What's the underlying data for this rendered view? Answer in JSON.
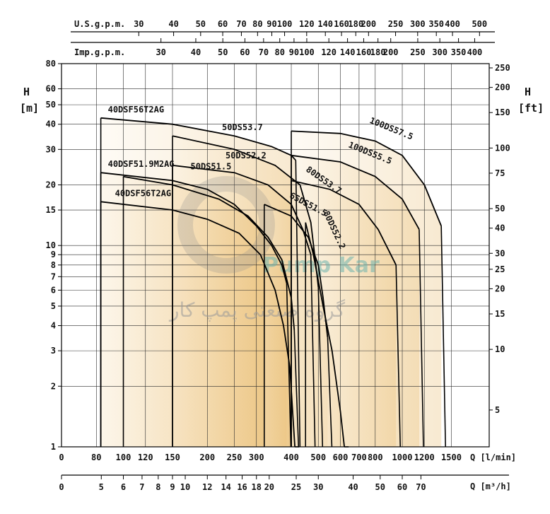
{
  "chart_data": {
    "type": "line",
    "axes": {
      "x_primary": {
        "label": "Q",
        "unit": "[l/min]",
        "scale": "log",
        "ticks": [
          0,
          80,
          100,
          120,
          150,
          200,
          250,
          300,
          400,
          500,
          600,
          700,
          800,
          1000,
          1200,
          1500
        ]
      },
      "x_m3h": {
        "label": "Q",
        "unit": "[m³/h]",
        "scale": "log",
        "ticks": [
          0,
          5,
          6,
          7,
          8,
          9,
          10,
          12,
          14,
          16,
          18,
          20,
          25,
          30,
          40,
          50,
          60,
          70
        ]
      },
      "x_usgpm": {
        "label": "U.S.g.p.m.",
        "scale": "log",
        "ticks": [
          30,
          40,
          50,
          60,
          70,
          80,
          90,
          100,
          120,
          140,
          160,
          180,
          200,
          250,
          300,
          350,
          400,
          500
        ]
      },
      "x_impgpm": {
        "label": "Imp.g.p.m.",
        "scale": "log",
        "ticks": [
          30,
          40,
          50,
          60,
          70,
          80,
          90,
          100,
          120,
          140,
          160,
          180,
          200,
          250,
          300,
          350,
          400
        ]
      },
      "y_left": {
        "label": "H",
        "unit": "[m]",
        "scale": "log",
        "range": [
          1,
          80
        ],
        "ticks": [
          1,
          2,
          3,
          4,
          5,
          6,
          7,
          8,
          9,
          10,
          15,
          20,
          30,
          40,
          50,
          60,
          80
        ]
      },
      "y_right": {
        "label": "H",
        "unit": "[ft]",
        "scale": "log",
        "ticks": [
          5,
          10,
          15,
          20,
          25,
          30,
          40,
          50,
          75,
          100,
          150,
          200,
          250
        ]
      }
    },
    "series": [
      {
        "name": "40DSF56T2AG",
        "points": [
          [
            83,
            43
          ],
          [
            150,
            40
          ],
          [
            250,
            35
          ],
          [
            340,
            31
          ],
          [
            400,
            28
          ],
          [
            415,
            26.5
          ]
        ]
      },
      {
        "name": "50DS53.7",
        "points": [
          [
            150,
            35
          ],
          [
            250,
            30
          ],
          [
            350,
            25
          ],
          [
            430,
            20
          ],
          [
            470,
            13
          ],
          [
            490,
            8
          ],
          [
            500,
            6.2
          ]
        ]
      },
      {
        "name": "50DS52.2",
        "points": [
          [
            150,
            25
          ],
          [
            250,
            23
          ],
          [
            330,
            20
          ],
          [
            400,
            16
          ],
          [
            440,
            12
          ],
          [
            470,
            9
          ]
        ]
      },
      {
        "name": "40DSF51.9M2AG",
        "points": [
          [
            83,
            23
          ],
          [
            150,
            21
          ],
          [
            200,
            19
          ],
          [
            250,
            16
          ],
          [
            300,
            12.5
          ],
          [
            340,
            10
          ],
          [
            370,
            8
          ],
          [
            385,
            6.5
          ]
        ]
      },
      {
        "name": "50DS51.5",
        "points": [
          [
            100,
            22
          ],
          [
            150,
            20
          ],
          [
            220,
            17
          ],
          [
            280,
            14
          ],
          [
            330,
            11
          ],
          [
            370,
            8.5
          ],
          [
            400,
            5.5
          ],
          [
            410,
            3.8
          ]
        ]
      },
      {
        "name": "40DSF56T2AG",
        "points": [
          [
            83,
            16.5
          ],
          [
            150,
            15
          ],
          [
            200,
            13.5
          ],
          [
            260,
            11.5
          ],
          [
            310,
            9
          ],
          [
            350,
            6
          ],
          [
            375,
            4
          ],
          [
            395,
            2.5
          ],
          [
            412,
            1
          ]
        ]
      },
      {
        "name": "65DS51.5",
        "points": [
          [
            320,
            16
          ],
          [
            400,
            14
          ],
          [
            460,
            11
          ],
          [
            500,
            8
          ],
          [
            520,
            5.5
          ],
          [
            540,
            3.5
          ]
        ]
      },
      {
        "name": "80DS52.2",
        "points": [
          [
            450,
            13
          ],
          [
            480,
            9
          ],
          [
            520,
            5
          ],
          [
            560,
            3
          ],
          [
            600,
            1.5
          ],
          [
            620,
            1
          ]
        ]
      },
      {
        "name": "80DS53.7",
        "points": [
          [
            400,
            21
          ],
          [
            550,
            19
          ],
          [
            700,
            16
          ],
          [
            820,
            12
          ],
          [
            950,
            8
          ]
        ]
      },
      {
        "name": "100DS55.5",
        "points": [
          [
            400,
            28
          ],
          [
            600,
            26
          ],
          [
            800,
            22
          ],
          [
            1000,
            17
          ],
          [
            1150,
            12
          ]
        ]
      },
      {
        "name": "100DS57.5",
        "points": [
          [
            400,
            37
          ],
          [
            600,
            36
          ],
          [
            800,
            33
          ],
          [
            1000,
            28
          ],
          [
            1200,
            20
          ],
          [
            1380,
            12.5
          ]
        ]
      }
    ]
  },
  "labels": {
    "usgpm": "U.S.g.p.m.",
    "impgpm": "Imp.g.p.m.",
    "h_left": "H",
    "h_left_unit": "[m]",
    "h_right": "H",
    "h_right_unit": "[ft]",
    "q_lmin": "Q [l/min]",
    "q_m3h": "Q [m³/h]",
    "watermark_latin": "Pump Kar",
    "watermark_persian": "گروه صنعتی پمپ کار"
  },
  "colors": {
    "band": "#e6b35c",
    "band_light": "#fbf0dc",
    "watermark_teal": "#6fb4ae"
  }
}
